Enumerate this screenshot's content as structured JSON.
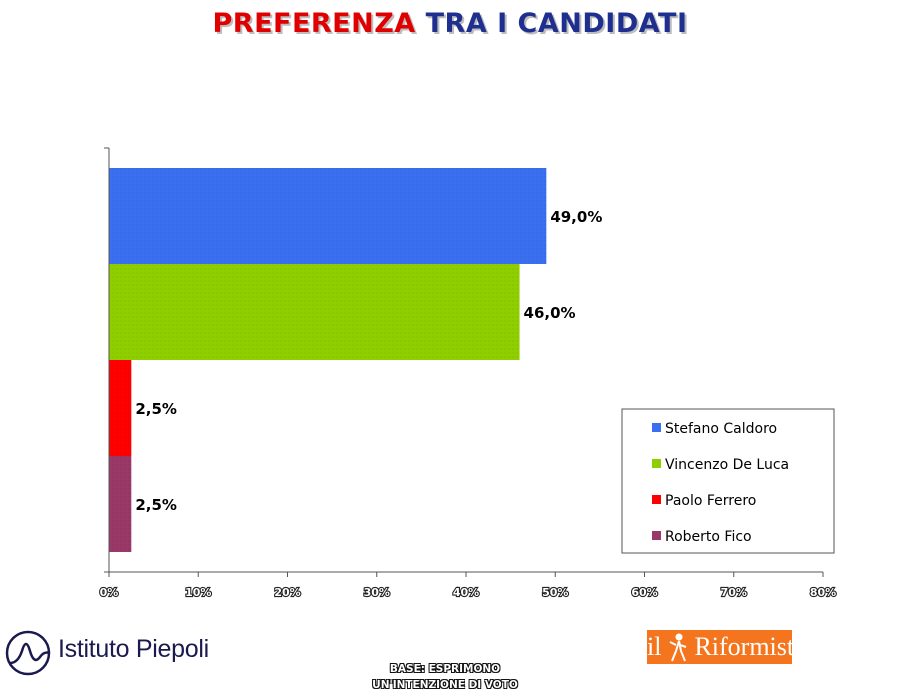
{
  "title": {
    "part1": "PREFERENZA",
    "part2": "TRA I CANDIDATI"
  },
  "chart_data": {
    "type": "bar",
    "orientation": "horizontal",
    "categories": [
      "Stefano Caldoro",
      "Vincenzo De Luca",
      "Paolo Ferrero",
      "Roberto Fico"
    ],
    "values": [
      49.0,
      46.0,
      2.5,
      2.5
    ],
    "data_labels": [
      "49,0%",
      "46,0%",
      "2,5%",
      "2,5%"
    ],
    "colors": [
      "#3a6ff0",
      "#8fcf00",
      "#ff0000",
      "#9a3868"
    ],
    "xlim": [
      0,
      80
    ],
    "x_ticks": [
      0,
      10,
      20,
      30,
      40,
      50,
      60,
      70,
      80
    ],
    "x_tick_labels": [
      "0%",
      "10%",
      "20%",
      "30%",
      "40%",
      "50%",
      "60%",
      "70%",
      "80%"
    ],
    "legend": {
      "position": "bottom-right",
      "entries": [
        "Stefano Caldoro",
        "Vincenzo De Luca",
        "Paolo Ferrero",
        "Roberto Fico"
      ]
    },
    "grid": false
  },
  "footer": {
    "base_line1": "BASE: ESPRIMONO",
    "base_line2": "UN'INTENZIONE DI VOTO",
    "logo_left": "Istituto Piepoli",
    "logo_right_a": "il",
    "logo_right_b": "Riformista"
  }
}
